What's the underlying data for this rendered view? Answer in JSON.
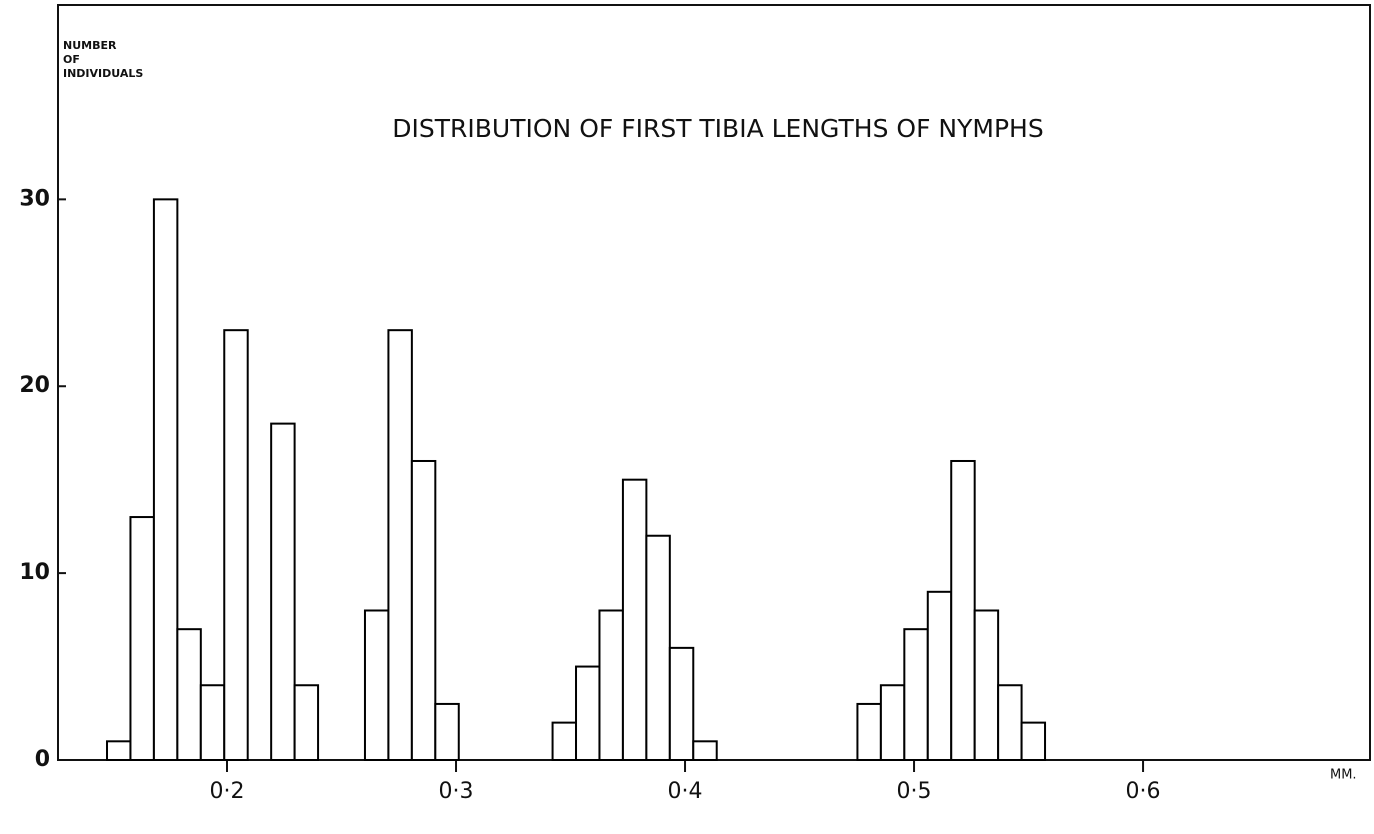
{
  "chart_data": {
    "type": "histogram",
    "title": "DISTRIBUTION OF FIRST TIBIA LENGTHS OF NYMPHS",
    "y_label": [
      "NUMBER",
      "OF",
      "INDIVIDUALS"
    ],
    "x_unit": "MM.",
    "bins": [
      0.1476,
      0.15784,
      0.16808,
      0.17832,
      0.18856,
      0.1988,
      0.20904,
      0.21928,
      0.22952,
      0.23976,
      0.25,
      0.26024,
      0.27048,
      0.28072,
      0.29096,
      0.3012,
      0.31144,
      0.32168,
      0.33192,
      0.34216,
      0.3524,
      0.36264,
      0.37288,
      0.38312,
      0.39336,
      0.4036,
      0.41384,
      0.42408,
      0.43432,
      0.44456,
      0.4548,
      0.46504,
      0.47528,
      0.48552,
      0.49576,
      0.506,
      0.51624,
      0.52648,
      0.53672,
      0.54696,
      0.5572
    ],
    "values": [
      1,
      13,
      30,
      7,
      4,
      23,
      0,
      18,
      4,
      0,
      0,
      8,
      23,
      16,
      3,
      0,
      0,
      0,
      0,
      2,
      5,
      8,
      15,
      12,
      6,
      1,
      0,
      0,
      0,
      0,
      0,
      0,
      3,
      4,
      7,
      9,
      16,
      8,
      4,
      2
    ],
    "color": "#ffffff",
    "edge_color": "#000000",
    "xlim": [
      0.1262,
      0.6991
    ],
    "xticks": [
      {
        "value": 0.2,
        "label": "0·2"
      },
      {
        "value": 0.3,
        "label": "0·3"
      },
      {
        "value": 0.4,
        "label": "0·4"
      },
      {
        "value": 0.5,
        "label": "0·5"
      },
      {
        "value": 0.6,
        "label": "0·6"
      }
    ],
    "ylim": [
      0,
      40.4
    ],
    "yticks": [
      0,
      10,
      20,
      30
    ],
    "grid": false
  }
}
